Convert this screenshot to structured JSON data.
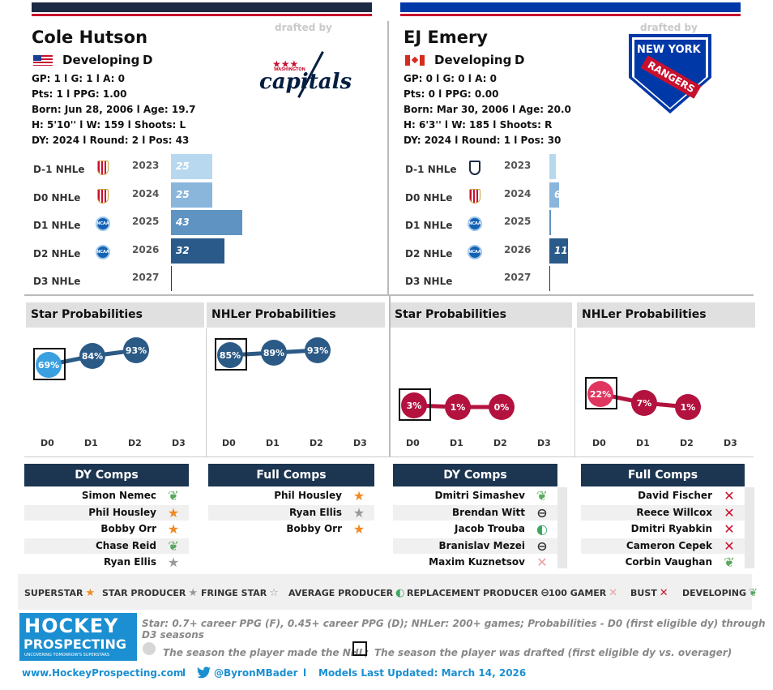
{
  "players": [
    {
      "name": "Cole Hutson",
      "drafted_by_label": "drafted by",
      "team_logo": "washington-capitals-logo",
      "team_logo_text": "WASHINGTON",
      "team_logo_text2": "capitals",
      "status": "Developing",
      "position": "D",
      "flag": "usa-flag",
      "line1": "GP: 1 l G: 1 l A: 0",
      "line2": "Pts: 1 l PPG: 1.00",
      "line3": "Born: Jun 28, 2006 l Age: 19.7",
      "line4": "H: 5'10'' l W: 159 l Shoots: L",
      "line5": "DY: 2024 l Round: 2 l Pos: 43",
      "seasons": [
        {
          "label": "D-1 NHLe",
          "year": "2023",
          "value": "25",
          "fraction": 0.25,
          "league": "usntdp-shield"
        },
        {
          "label": "D0 NHLe",
          "year": "2024",
          "value": "25",
          "fraction": 0.25,
          "league": "usntdp-shield"
        },
        {
          "label": "D1 NHLe",
          "year": "2025",
          "value": "43",
          "fraction": 0.43,
          "league": "ncaa-badge"
        },
        {
          "label": "D2 NHLe",
          "year": "2026",
          "value": "32",
          "fraction": 0.32,
          "league": "ncaa-badge"
        },
        {
          "label": "D3 NHLe",
          "year": "2027",
          "value": "",
          "fraction": 0,
          "league": ""
        }
      ],
      "star_title": "Star Probabilities",
      "nhler_title": "NHLer Probabilities",
      "star_probs": [
        "69%",
        "84%",
        "93%"
      ],
      "nhler_probs": [
        "85%",
        "89%",
        "93%"
      ],
      "dy_comps_title": "DY Comps",
      "full_comps_title": "Full Comps",
      "dy_comps": [
        {
          "name": "Simon Nemec",
          "icon": "developing-leaf-icon"
        },
        {
          "name": "Phil Housley",
          "icon": "superstar-icon"
        },
        {
          "name": "Bobby Orr",
          "icon": "superstar-icon"
        },
        {
          "name": "Chase Reid",
          "icon": "developing-leaf-icon"
        },
        {
          "name": "Ryan Ellis",
          "icon": "star-producer-icon"
        }
      ],
      "full_comps": [
        {
          "name": "Phil Housley",
          "icon": "superstar-icon"
        },
        {
          "name": "Ryan Ellis",
          "icon": "star-producer-icon"
        },
        {
          "name": "Bobby Orr",
          "icon": "superstar-icon"
        }
      ]
    },
    {
      "name": "EJ Emery",
      "drafted_by_label": "drafted by",
      "team_logo": "new-york-rangers-logo",
      "team_logo_text": "NEW YORK",
      "team_logo_text2": "RANGERS",
      "status": "Developing",
      "position": "D",
      "flag": "canada-flag",
      "line1": "GP: 0 l G: 0 l A: 0",
      "line2": "Pts: 0 l PPG: 0.00",
      "line3": "Born: Mar 30, 2006 l Age: 20.0",
      "line4": "H: 6'3'' l W: 185 l Shoots: R",
      "line5": "DY: 2024 l Round: 1 l Pos: 30",
      "seasons": [
        {
          "label": "D-1 NHLe",
          "year": "2023",
          "value": "",
          "fraction": 0.04,
          "league": "ushl-shield"
        },
        {
          "label": "D0 NHLe",
          "year": "2024",
          "value": "6",
          "fraction": 0.06,
          "league": "usntdp-shield"
        },
        {
          "label": "D1 NHLe",
          "year": "2025",
          "value": "",
          "fraction": 0.005,
          "league": "ncaa-badge"
        },
        {
          "label": "D2 NHLe",
          "year": "2026",
          "value": "11",
          "fraction": 0.11,
          "league": "ncaa-badge"
        },
        {
          "label": "D3 NHLe",
          "year": "2027",
          "value": "",
          "fraction": 0,
          "league": ""
        }
      ],
      "star_title": "Star Probabilities",
      "nhler_title": "NHLer Probabilities",
      "star_probs": [
        "3%",
        "1%",
        "0%"
      ],
      "nhler_probs": [
        "22%",
        "7%",
        "1%"
      ],
      "dy_comps_title": "DY Comps",
      "full_comps_title": "Full Comps",
      "dy_comps": [
        {
          "name": "Dmitri Simashev",
          "icon": "developing-leaf-icon"
        },
        {
          "name": "Brendan Witt",
          "icon": "replacement-producer-icon"
        },
        {
          "name": "Jacob Trouba",
          "icon": "average-producer-icon"
        },
        {
          "name": "Branislav Mezei",
          "icon": "replacement-producer-icon"
        },
        {
          "name": "Maxim Kuznetsov",
          "icon": "100-gamer-icon"
        }
      ],
      "full_comps": [
        {
          "name": "David Fischer",
          "icon": "bust-icon"
        },
        {
          "name": "Reece Willcox",
          "icon": "bust-icon"
        },
        {
          "name": "Dmitri Ryabkin",
          "icon": "bust-icon"
        },
        {
          "name": "Cameron Cepek",
          "icon": "bust-icon"
        },
        {
          "name": "Corbin Vaughan",
          "icon": "developing-leaf-icon"
        }
      ]
    }
  ],
  "axis_labels": [
    "D0",
    "D1",
    "D2",
    "D3"
  ],
  "legend": [
    {
      "label": "SUPERSTAR",
      "icon": "superstar-icon"
    },
    {
      "label": "STAR PRODUCER",
      "icon": "star-producer-icon"
    },
    {
      "label": "FRINGE STAR",
      "icon": "fringe-star-icon"
    },
    {
      "label": "AVERAGE PRODUCER",
      "icon": "average-producer-icon"
    },
    {
      "label": "REPLACEMENT PRODUCER",
      "icon": "replacement-producer-icon"
    },
    {
      "label": "100 GAMER",
      "icon": "100-gamer-icon"
    },
    {
      "label": "BUST",
      "icon": "bust-icon"
    },
    {
      "label": "DEVELOPING",
      "icon": "developing-leaf-icon"
    }
  ],
  "brand": {
    "line1": "HOCKEY",
    "line2": "PROSPECTING",
    "tagline": "UNCOVERING TOMORROW'S SUPERSTARS"
  },
  "footnote1": "Star: 0.7+ career PPG (F), 0.45+ career PPG (D); NHLer: 200+ games; Probabilities - D0 (first eligible dy) through D3 seasons",
  "footnote2": "The season the player made the NHL;",
  "footnote3": "The season the player was drafted (first eligible dy vs. overager)",
  "footer": {
    "website": "www.HockeyProspecting.com",
    "sep": "l",
    "twitter": "@ByronMBader",
    "updated": "Models Last Updated: March 14, 2026"
  },
  "colors": {
    "navy": "#1c3550",
    "red": "#c8102e",
    "blue": "#0038a8",
    "bar_light": "#b8d8ef",
    "bar_mid": "#8ab6db",
    "bar_dark": "#5e93c2",
    "bar_darkest": "#2a5a8a",
    "dot_light": "#3aa0e0",
    "dot_blue": "#2c5a86",
    "dot_red": "#b3123f",
    "dot_pink": "#e0355f"
  }
}
